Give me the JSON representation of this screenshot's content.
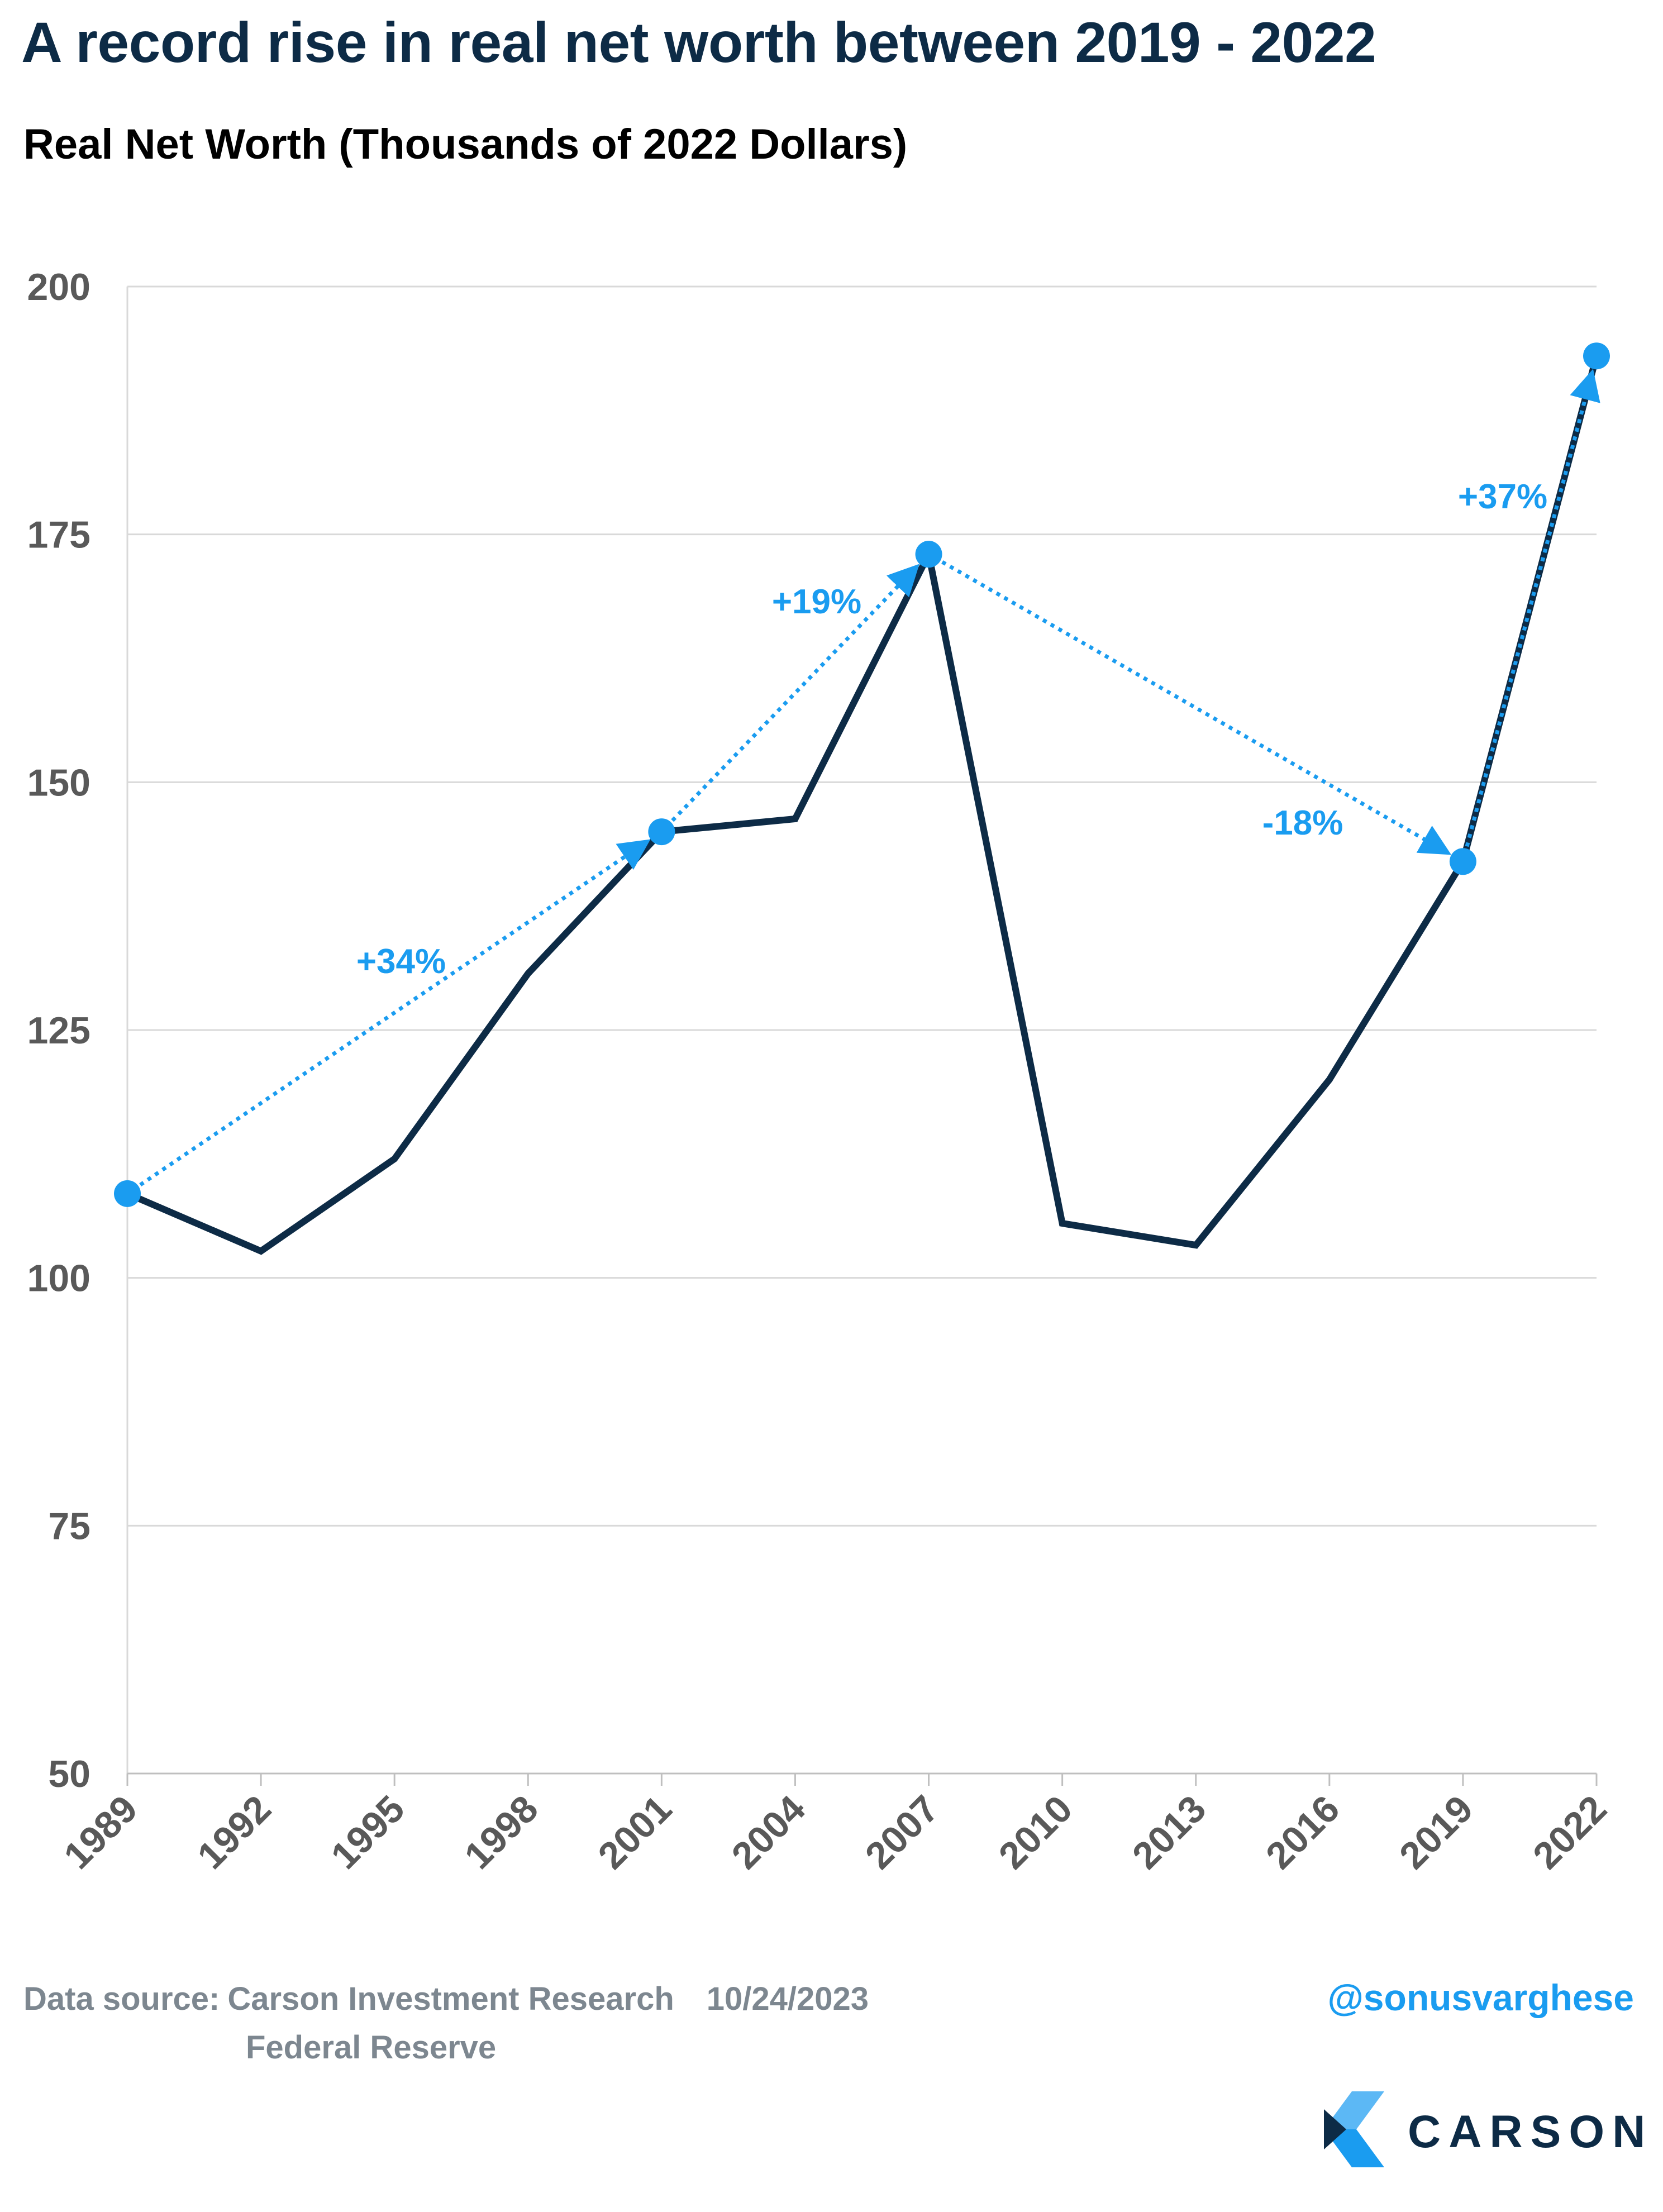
{
  "title": "A record rise in real net worth between 2019 - 2022",
  "subtitle": "Real Net Worth (Thousands of 2022 Dollars)",
  "colors": {
    "line": "#0d2b46",
    "accent": "#1a9cf0",
    "grid": "#d9d9d9",
    "axis_text": "#595959",
    "footer_text": "#7d8790"
  },
  "chart_data": {
    "type": "line",
    "x": [
      "1989",
      "1992",
      "1995",
      "1998",
      "2001",
      "2004",
      "2007",
      "2010",
      "2013",
      "2016",
      "2019",
      "2022"
    ],
    "series": [
      {
        "values": [
          108.5,
          102.7,
          112,
          130.7,
          145,
          146.3,
          173,
          105.5,
          103.3,
          120,
          142,
          193
        ]
      }
    ],
    "ylim": [
      50,
      200
    ],
    "yticks": [
      50,
      75,
      100,
      125,
      150,
      175,
      200
    ],
    "grid": "horizontal",
    "highlight_points": [
      {
        "x": "1989",
        "y": 108.5
      },
      {
        "x": "2001",
        "y": 145
      },
      {
        "x": "2007",
        "y": 173
      },
      {
        "x": "2019",
        "y": 142
      },
      {
        "x": "2022",
        "y": 193
      }
    ],
    "annotations": [
      {
        "text": "+34%",
        "from": "1989",
        "to": "2001"
      },
      {
        "text": "+19%",
        "from": "2001",
        "to": "2007"
      },
      {
        "text": "-18%",
        "from": "2007",
        "to": "2019"
      },
      {
        "text": "+37%",
        "from": "2019",
        "to": "2022"
      }
    ]
  },
  "footer": {
    "source_label": "Data source:",
    "source_line1": "Carson Investment Research",
    "source_line2": "Federal Reserve",
    "date": "10/24/2023",
    "handle": "@sonusvarghese"
  },
  "logo": {
    "name": "CARSON",
    "icon": "carson-logo-icon"
  }
}
